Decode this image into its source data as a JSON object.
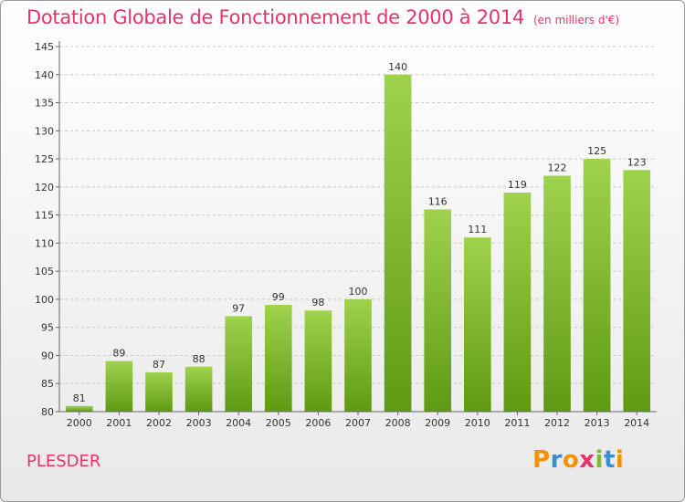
{
  "chart_data": {
    "type": "bar",
    "title": "Dotation Globale de Fonctionnement de 2000 à 2014",
    "unit": "(en milliers d'€)",
    "categories": [
      "2000",
      "2001",
      "2002",
      "2003",
      "2004",
      "2005",
      "2006",
      "2007",
      "2008",
      "2009",
      "2010",
      "2011",
      "2012",
      "2013",
      "2014"
    ],
    "values": [
      81,
      89,
      87,
      88,
      97,
      99,
      98,
      100,
      140,
      116,
      111,
      119,
      122,
      125,
      123
    ],
    "ylim": [
      80,
      145
    ],
    "yticks": [
      80,
      85,
      90,
      95,
      100,
      105,
      110,
      115,
      120,
      125,
      130,
      135,
      140,
      145
    ],
    "grid": true,
    "bar_color": "#7dbb2e"
  },
  "commune": "PLESDER",
  "logo": {
    "letters": [
      "P",
      "r",
      "o",
      "x",
      "i",
      "t",
      "i"
    ],
    "colors": [
      "#f39200",
      "#3a8fd1",
      "#f39200",
      "#e8326b",
      "#7dbb2e",
      "#3a8fd1",
      "#f39200"
    ]
  }
}
